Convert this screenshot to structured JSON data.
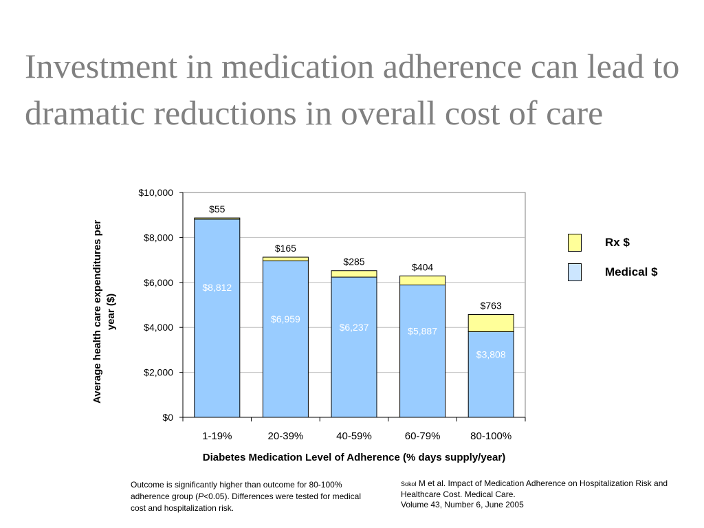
{
  "slide": {
    "title": "Investment in medication adherence can lead to dramatic reductions in overall cost of care"
  },
  "chart_data": {
    "type": "bar",
    "stacked": true,
    "categories": [
      "1-19%",
      "20-39%",
      "40-59%",
      "60-79%",
      "80-100%"
    ],
    "series": [
      {
        "name": "Medical $",
        "values": [
          8812,
          6959,
          6237,
          5887,
          3808
        ],
        "labels": [
          "$8,812",
          "$6,959",
          "$6,237",
          "$5,887",
          "$3,808"
        ],
        "color": "#99ccff"
      },
      {
        "name": "Rx $",
        "values": [
          55,
          165,
          285,
          404,
          763
        ],
        "labels": [
          "$55",
          "$165",
          "$285",
          "$404",
          "$763"
        ],
        "color": "#ffff99"
      }
    ],
    "xlabel": "Diabetes Medication Level of Adherence (% days supply/year)",
    "ylabel": "Average health care expenditures per year ($)",
    "ylim": [
      0,
      10000
    ],
    "yticks": [
      0,
      2000,
      4000,
      6000,
      8000,
      10000
    ],
    "ytick_labels": [
      "$0",
      "$2,000",
      "$4,000",
      "$6,000",
      "$8,000",
      "$10,000"
    ],
    "grid": true,
    "legend": "right"
  },
  "legend": {
    "items": [
      {
        "label": "Rx $",
        "color": "#ffff99"
      },
      {
        "label": "Medical $",
        "color": "#cce6ff"
      }
    ]
  },
  "footnotes": {
    "left_part1": "Outcome is significantly higher than outcome for 80-100% adherence group (",
    "left_italic": "P",
    "left_part2": "<0.05). Differences were tested for medical cost and hospitalization risk.",
    "right_author_small": "Sokol",
    "right_line1_rest": " M et al.  Impact of Medication Adherence on Hospitalization Risk and Healthcare Cost.  Medical Care.",
    "right_line2": "Volume 43, Number 6, June 2005"
  }
}
